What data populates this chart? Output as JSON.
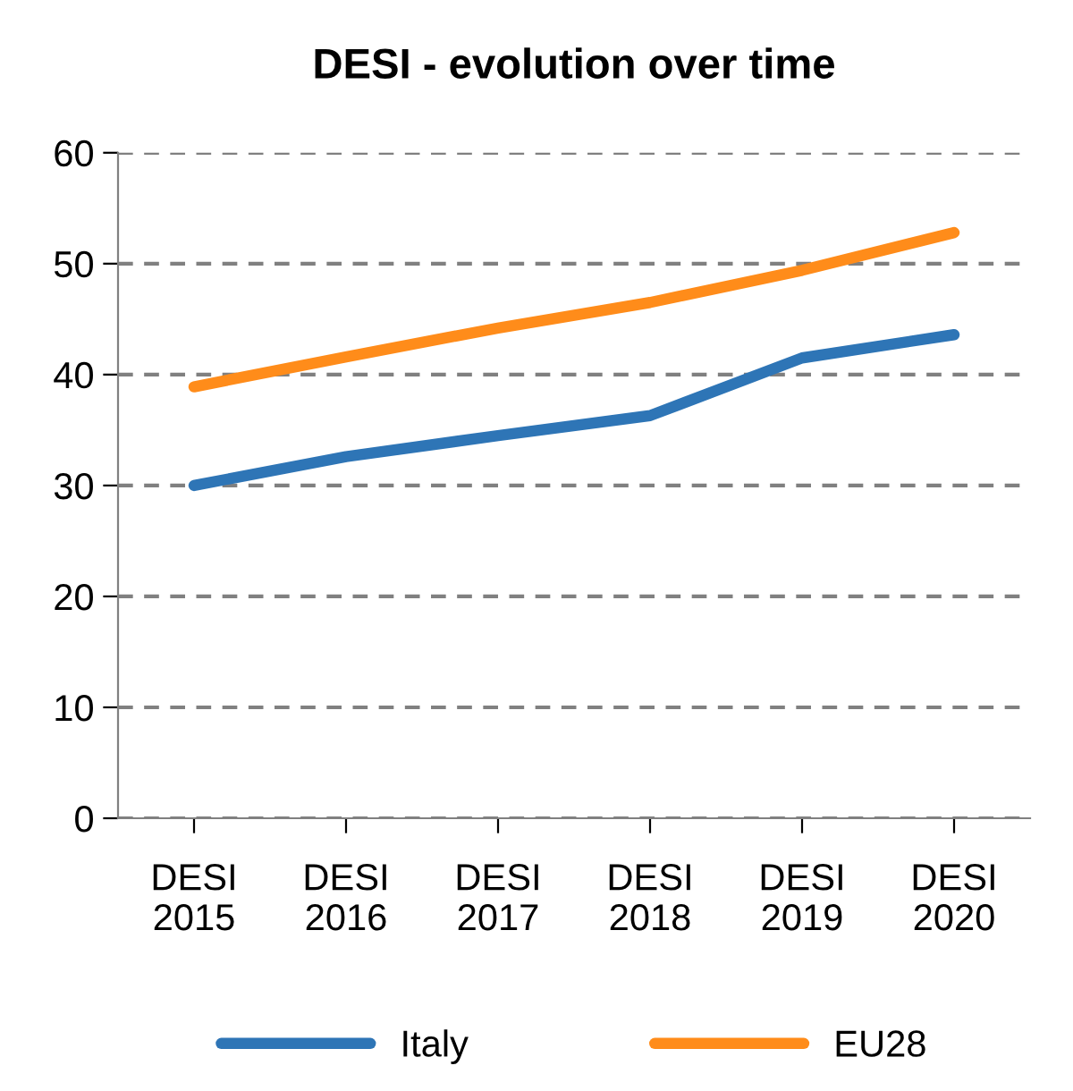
{
  "chart_data": {
    "type": "line",
    "title": "DESI - evolution over time",
    "categories": [
      "DESI\n2015",
      "DESI\n2016",
      "DESI\n2017",
      "DESI\n2018",
      "DESI\n2019",
      "DESI\n2020"
    ],
    "series": [
      {
        "name": "Italy",
        "color": "#2e75b6",
        "values": [
          30.0,
          32.6,
          34.5,
          36.3,
          41.5,
          43.6
        ]
      },
      {
        "name": "EU28",
        "color": "#ff8c1a",
        "values": [
          38.9,
          41.6,
          44.2,
          46.5,
          49.4,
          52.8
        ]
      }
    ],
    "ylim": [
      0,
      60
    ],
    "yticks": [
      0,
      10,
      20,
      30,
      40,
      50,
      60
    ],
    "grid": "y",
    "legend": "bottom",
    "marker": "none",
    "line_style": "solid"
  }
}
